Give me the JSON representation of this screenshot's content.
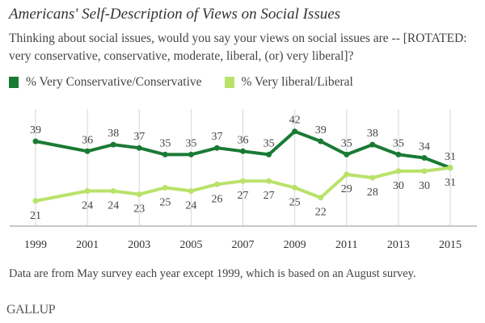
{
  "chart_data": {
    "type": "line",
    "title": "Americans' Self-Description of Views on Social Issues",
    "subtitle": "Thinking about social issues, would you say your views on social issues are -- [ROTATED: very conservative, conservative, moderate, liberal, (or) very liberal]?",
    "x": [
      1999,
      2001,
      2002,
      2003,
      2004,
      2005,
      2006,
      2007,
      2008,
      2009,
      2010,
      2011,
      2012,
      2013,
      2014,
      2015
    ],
    "xticks": [
      "1999",
      "2001",
      "2003",
      "2005",
      "2007",
      "2009",
      "2011",
      "2013",
      "2015"
    ],
    "series": [
      {
        "name": "% Very Conservative/Conservative",
        "color": "#1a7a34",
        "values": [
          39,
          36,
          38,
          37,
          35,
          35,
          37,
          36,
          35,
          42,
          39,
          35,
          38,
          35,
          34,
          31
        ]
      },
      {
        "name": "% Very liberal/Liberal",
        "color": "#b9e26a",
        "values": [
          21,
          24,
          24,
          23,
          25,
          24,
          26,
          27,
          27,
          25,
          22,
          29,
          28,
          30,
          30,
          31
        ]
      }
    ],
    "xlabel": "",
    "ylabel": "",
    "grid": "vertical",
    "legend": "top-left",
    "footnote": "Data are from May survey each year except 1999, which is based on an August survey.",
    "source": "GALLUP"
  }
}
